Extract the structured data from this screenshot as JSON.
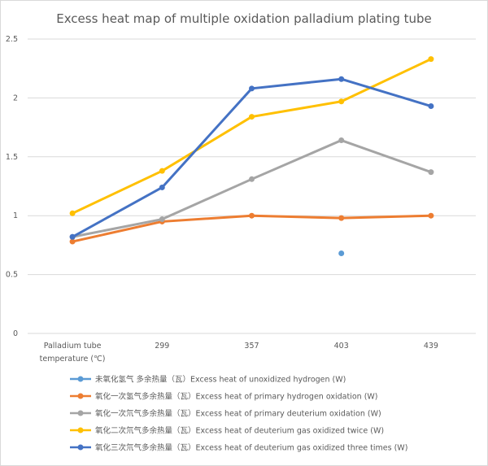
{
  "chart_data": {
    "type": "line",
    "title": "Excess heat map of multiple oxidation palladium plating tube",
    "xlabel": "",
    "ylabel": "",
    "categories": [
      [
        "Palladium tube",
        "temperature (℃)"
      ],
      [
        "299"
      ],
      [
        "357"
      ],
      [
        "403"
      ],
      [
        "439"
      ]
    ],
    "ylim": [
      0,
      2.5
    ],
    "yticks": [
      "0",
      "0.5",
      "1",
      "1.5",
      "2",
      "2.5"
    ],
    "grid": true,
    "legend_position": "bottom",
    "series": [
      {
        "name": "未氧化氢气 多余热量（瓦）Excess heat of unoxidized hydrogen (W)",
        "color": "#5b9bd5",
        "values": [
          null,
          null,
          null,
          0.68,
          null
        ]
      },
      {
        "name": "氧化一次氢气多余热量（瓦）Excess heat of primary hydrogen oxidation (W)",
        "color": "#ed7d31",
        "values": [
          0.78,
          0.95,
          1.0,
          0.98,
          1.0
        ]
      },
      {
        "name": "氧化一次氘气多余热量（瓦）Excess heat of primary deuterium oxidation (W)",
        "color": "#a5a5a5",
        "values": [
          0.82,
          0.97,
          1.31,
          1.64,
          1.37
        ]
      },
      {
        "name": "氧化二次氘气多余热量（瓦）Excess heat of deuterium gas oxidized twice (W)",
        "color": "#ffc000",
        "values": [
          1.02,
          1.38,
          1.84,
          1.97,
          2.33
        ]
      },
      {
        "name": "氧化三次氘气多余热量（瓦）Excess heat of deuterium gas oxidized three times (W)",
        "color": "#4472c4",
        "values": [
          0.82,
          1.24,
          2.08,
          2.16,
          1.93
        ]
      }
    ]
  }
}
